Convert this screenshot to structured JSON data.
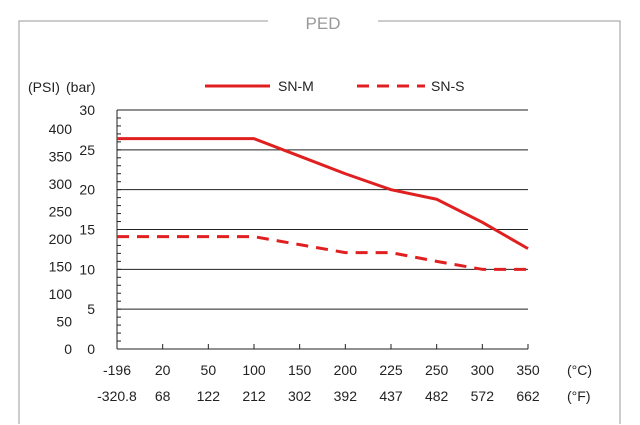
{
  "chart_data": {
    "type": "line",
    "title": "PED",
    "y_unit_labels": [
      "(PSI)",
      "(bar)"
    ],
    "x_unit_labels": [
      "(°C)",
      "(°F)"
    ],
    "x_celsius": [
      -196,
      20,
      50,
      100,
      150,
      200,
      225,
      250,
      300,
      350
    ],
    "x_fahrenheit": [
      "-320.8",
      "68",
      "122",
      "212",
      "302",
      "392",
      "437",
      "482",
      "572",
      "662"
    ],
    "ylim_bar": [
      0,
      30
    ],
    "yticks_bar": [
      0,
      5,
      10,
      15,
      20,
      25,
      30
    ],
    "yticks_psi": [
      0,
      50,
      100,
      150,
      200,
      250,
      300,
      350,
      400
    ],
    "grid": "horizontal at 5 bar steps",
    "legend_position": "top",
    "series": [
      {
        "name": "SN-M",
        "style": "solid",
        "color": "#e02020",
        "values": [
          26.4,
          26.4,
          26.4,
          26.4,
          24.2,
          22.0,
          20.0,
          18.8,
          15.9,
          12.6
        ]
      },
      {
        "name": "SN-S",
        "style": "dashed",
        "color": "#e02020",
        "values": [
          14.1,
          14.1,
          14.1,
          14.1,
          13.1,
          12.1,
          12.1,
          11.0,
          10.0,
          10.0
        ]
      }
    ]
  }
}
